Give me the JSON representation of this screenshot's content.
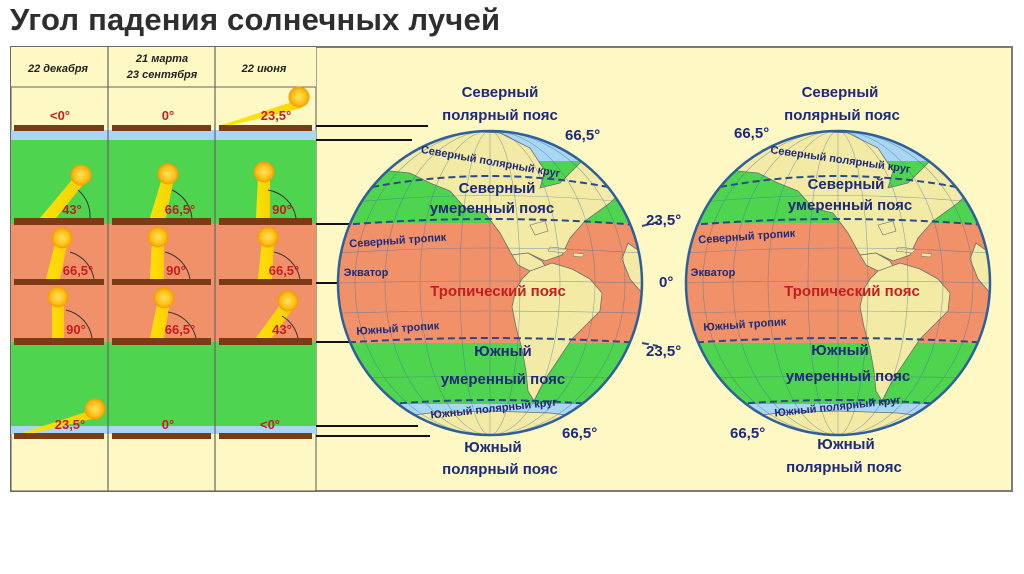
{
  "title": "Угол падения солнечных лучей",
  "columns": {
    "dec": "22 декабря",
    "equinox_1": "21 марта",
    "equinox_2": "23 сентября",
    "jun": "22 июня"
  },
  "angles": {
    "r1": [
      "<0°",
      "0°",
      "23,5°"
    ],
    "r2": [
      "43°",
      "66,5°",
      "90°"
    ],
    "r3": [
      "66,5°",
      "90°",
      "66,5°"
    ],
    "r4": [
      "90°",
      "66,5°",
      "43°"
    ],
    "r5": [
      "23,5°",
      "0°",
      "<0°"
    ]
  },
  "labels": {
    "north_polar_1": "Северный",
    "north_polar_2": "полярный пояс",
    "arctic_circle": "Северный полярный круг",
    "north_temperate_1": "Северный",
    "north_temperate_2": "умеренный пояс",
    "tropic_north": "Северный тропик",
    "equator": "Экватор",
    "tropical": "Тропический  пояс",
    "tropic_south": "Южный тропик",
    "south_temperate_1": "Южный",
    "south_temperate_2": "умеренный пояс",
    "antarctic_circle": "Южный полярный круг",
    "south_polar_1": "Южный",
    "south_polar_2": "полярный пояс"
  },
  "degrees": {
    "arctic": "66,5°",
    "tropic_n": "23,5°",
    "equator": "0°",
    "tropic_s": "23,5°",
    "antarctic": "66,5°"
  },
  "colors": {
    "polar": "#a9d7f3",
    "temperate": "#4fd44f",
    "tropical": "#f0916a",
    "land": "#f3eba5",
    "panel": "#fdf8c4",
    "label": "#1e2a78",
    "angle": "#c41e1e"
  }
}
